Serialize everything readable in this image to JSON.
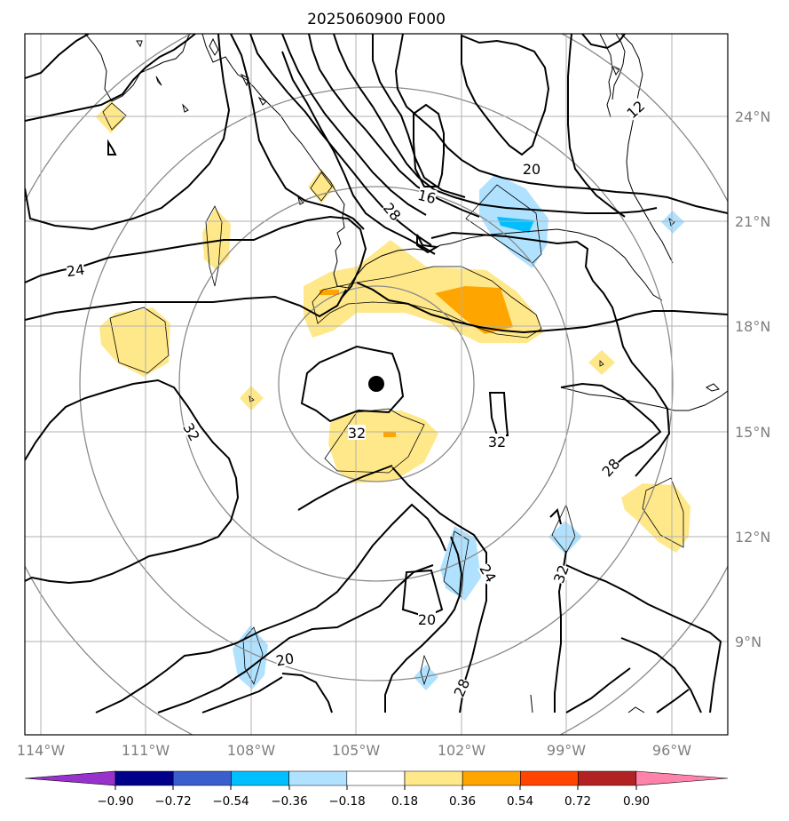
{
  "title": "2025060900 F000",
  "map": {
    "lon_ticks": [
      "114°W",
      "111°W",
      "108°W",
      "105°W",
      "102°W",
      "99°W",
      "96°W"
    ],
    "lat_ticks": [
      "24°N",
      "21°N",
      "18°N",
      "15°N",
      "12°N",
      "9°N"
    ],
    "contour_labels": [
      "12",
      "16",
      "20",
      "24",
      "28",
      "32",
      "32",
      "32",
      "28",
      "24",
      "32",
      "20",
      "20",
      "28"
    ],
    "storm_center_marker": "filled-circle"
  },
  "colorbar": {
    "ticks": [
      "−0.90",
      "−0.72",
      "−0.54",
      "−0.36",
      "−0.18",
      "0.18",
      "0.36",
      "0.54",
      "0.72",
      "0.90"
    ],
    "colors": [
      "#9932cc",
      "#00008b",
      "#3a5fcd",
      "#00bfff",
      "#b0e2ff",
      "#ffffff",
      "#ffe88a",
      "#ffa500",
      "#ff4500",
      "#b22222",
      "#ff82ab"
    ]
  }
}
